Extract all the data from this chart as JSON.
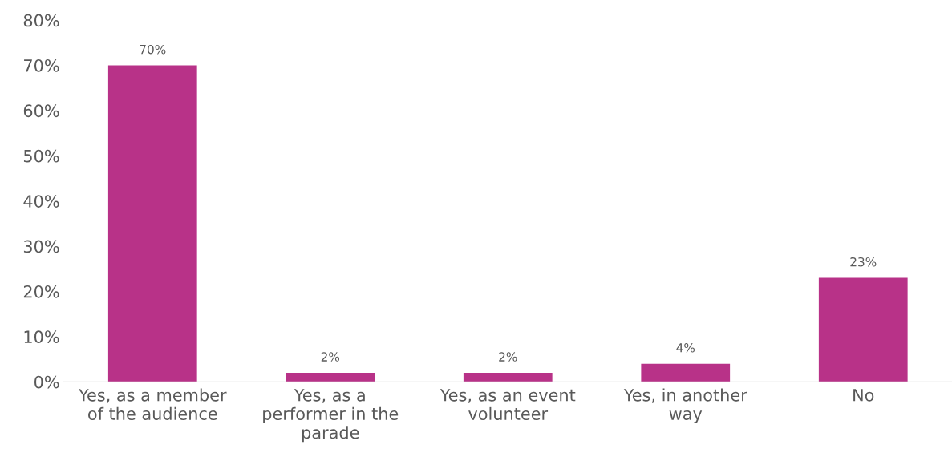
{
  "chart_data": {
    "type": "bar",
    "categories": [
      "Yes, as a member of the audience",
      "Yes, as a performer in the parade",
      "Yes, as an event volunteer",
      "Yes, in another way",
      "No"
    ],
    "values": [
      70,
      2,
      2,
      4,
      23
    ],
    "value_labels": [
      "70%",
      "2%",
      "2%",
      "4%",
      "23%"
    ],
    "color": "#b83288",
    "ylim": [
      0,
      80
    ],
    "yticks": [
      {
        "value": 0,
        "label": "0%"
      },
      {
        "value": 10,
        "label": "10%"
      },
      {
        "value": 20,
        "label": "20%"
      },
      {
        "value": 30,
        "label": "30%"
      },
      {
        "value": 40,
        "label": "40%"
      },
      {
        "value": 50,
        "label": "50%"
      },
      {
        "value": 60,
        "label": "60%"
      },
      {
        "value": 70,
        "label": "70%"
      },
      {
        "value": 80,
        "label": "80%"
      }
    ],
    "grid": false,
    "legend": false
  }
}
